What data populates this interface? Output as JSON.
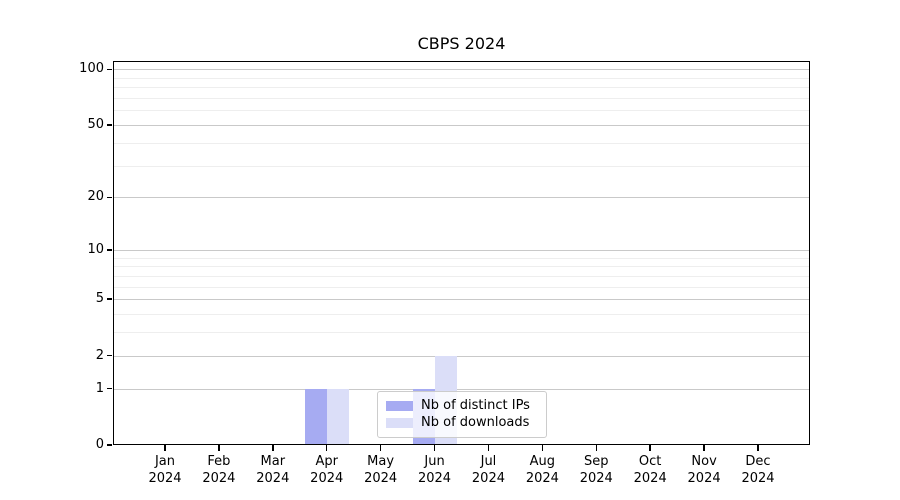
{
  "chart_data": {
    "type": "bar",
    "title": "CBPS 2024",
    "categories": [
      "Jan",
      "Feb",
      "Mar",
      "Apr",
      "May",
      "Jun",
      "Jul",
      "Aug",
      "Sep",
      "Oct",
      "Nov",
      "Dec"
    ],
    "x_tick_year": "2024",
    "series": [
      {
        "name": "Nb of distinct IPs",
        "color": "#a6abf2",
        "values": [
          0,
          0,
          0,
          1,
          0,
          1,
          0,
          0,
          0,
          0,
          0,
          0
        ]
      },
      {
        "name": "Nb of downloads",
        "color": "#dbdef8",
        "values": [
          0,
          0,
          0,
          1,
          0,
          2,
          0,
          0,
          0,
          0,
          0,
          0
        ]
      }
    ],
    "xlabel": "",
    "ylabel": "",
    "yscale": "log1p",
    "ylim": [
      0,
      111
    ],
    "yticks": [
      0,
      1,
      2,
      5,
      10,
      20,
      50,
      100
    ],
    "yticks_minor": [
      3,
      4,
      6,
      7,
      8,
      9,
      30,
      40,
      60,
      70,
      80,
      90
    ],
    "grid": true,
    "legend_position": "lower center, inside plot"
  },
  "colors": {
    "grid_major": "#c9c9c9",
    "grid_minor": "#eeeeee",
    "axis": "#000000",
    "background": "#ffffff"
  }
}
